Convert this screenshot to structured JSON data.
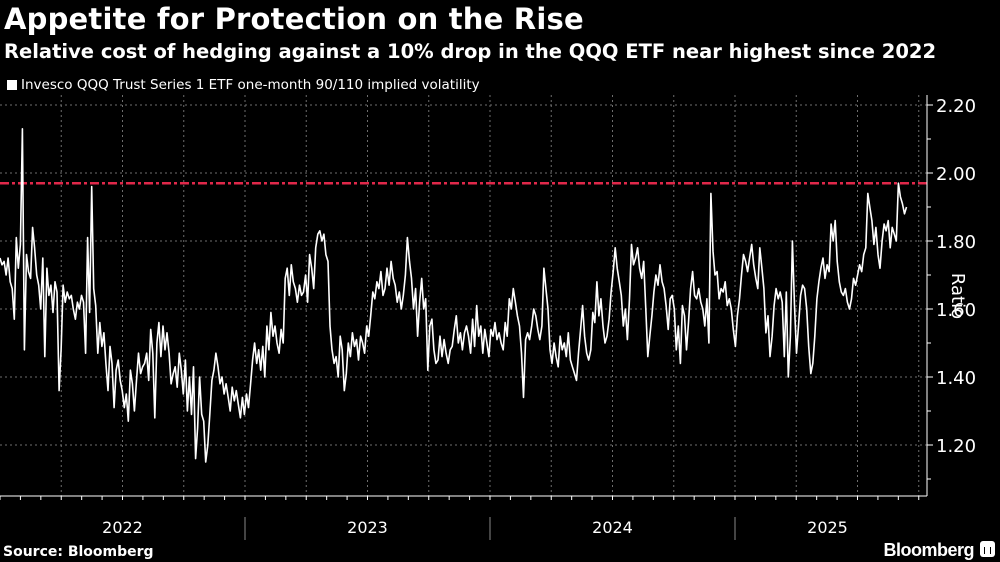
{
  "header": {
    "title": "Appetite for Protection on the Rise",
    "subtitle": "Relative cost of hedging against a 10% drop in the QQQ ETF near highest since 2022"
  },
  "legend": {
    "label": "Invesco QQQ Trust Series 1 ETF one-month 90/110 implied volatility"
  },
  "footer": {
    "source": "Source: Bloomberg",
    "brand": "Bloomberg"
  },
  "colors": {
    "background": "#000000",
    "line": "#ffffff",
    "reference_line": "#e0284a",
    "grid": "#6e6e6e"
  },
  "chart_data": {
    "type": "line",
    "title": "Appetite for Protection on the Rise",
    "subtitle": "Relative cost of hedging against a 10% drop in the QQQ ETF near highest since 2022",
    "xlabel": "",
    "ylabel": "Ratio",
    "ylim": [
      1.05,
      2.24
    ],
    "yticks": [
      1.2,
      1.4,
      1.6,
      1.8,
      2.0,
      2.2
    ],
    "ytick_labels": [
      "1.20",
      "1.40",
      "1.60",
      "1.80",
      "2.00",
      "2.20"
    ],
    "xlim": [
      2022.0,
      2025.75
    ],
    "xtick_labels": [
      "2022",
      "2023",
      "2024",
      "2025"
    ],
    "grid": true,
    "legend_position": "top-left",
    "reference_line": {
      "y": 1.97,
      "style": "dash-dot",
      "label": ""
    },
    "series": [
      {
        "name": "Invesco QQQ Trust Series 1 ETF one-month 90/110 implied volatility",
        "x_start": 2022.0,
        "x_step_years": 0.0192,
        "values": [
          1.75,
          1.73,
          1.74,
          1.7,
          1.75,
          1.68,
          1.66,
          1.57,
          1.81,
          1.72,
          1.79,
          2.13,
          1.48,
          1.76,
          1.71,
          1.69,
          1.84,
          1.78,
          1.7,
          1.67,
          1.6,
          1.75,
          1.46,
          1.72,
          1.64,
          1.67,
          1.59,
          1.68,
          1.65,
          1.36,
          1.48,
          1.67,
          1.62,
          1.65,
          1.63,
          1.64,
          1.6,
          1.57,
          1.62,
          1.6,
          1.64,
          1.62,
          1.47,
          1.81,
          1.59,
          1.96,
          1.66,
          1.61,
          1.47,
          1.56,
          1.49,
          1.53,
          1.44,
          1.36,
          1.49,
          1.44,
          1.31,
          1.42,
          1.45,
          1.39,
          1.36,
          1.31,
          1.35,
          1.27,
          1.42,
          1.38,
          1.3,
          1.39,
          1.47,
          1.41,
          1.43,
          1.44,
          1.47,
          1.39,
          1.54,
          1.47,
          1.28,
          1.5,
          1.56,
          1.46,
          1.55,
          1.48,
          1.53,
          1.47,
          1.38,
          1.41,
          1.43,
          1.37,
          1.47,
          1.42,
          1.35,
          1.45,
          1.3,
          1.4,
          1.29,
          1.43,
          1.16,
          1.25,
          1.4,
          1.29,
          1.27,
          1.15,
          1.2,
          1.29,
          1.39,
          1.42,
          1.47,
          1.43,
          1.38,
          1.4,
          1.35,
          1.38,
          1.34,
          1.3,
          1.37,
          1.33,
          1.36,
          1.32,
          1.28,
          1.34,
          1.29,
          1.35,
          1.31,
          1.38,
          1.45,
          1.5,
          1.44,
          1.48,
          1.42,
          1.49,
          1.4,
          1.55,
          1.48,
          1.59,
          1.52,
          1.55,
          1.5,
          1.47,
          1.54,
          1.5,
          1.69,
          1.72,
          1.64,
          1.73,
          1.68,
          1.66,
          1.62,
          1.67,
          1.64,
          1.65,
          1.7,
          1.62,
          1.76,
          1.72,
          1.66,
          1.78,
          1.82,
          1.83,
          1.8,
          1.82,
          1.76,
          1.74,
          1.55,
          1.48,
          1.44,
          1.46,
          1.4,
          1.52,
          1.48,
          1.36,
          1.41,
          1.5,
          1.46,
          1.53,
          1.49,
          1.51,
          1.45,
          1.52,
          1.5,
          1.47,
          1.55,
          1.52,
          1.58,
          1.65,
          1.63,
          1.68,
          1.66,
          1.71,
          1.64,
          1.66,
          1.72,
          1.67,
          1.74,
          1.69,
          1.67,
          1.62,
          1.65,
          1.6,
          1.64,
          1.7,
          1.81,
          1.74,
          1.69,
          1.6,
          1.66,
          1.52,
          1.62,
          1.69,
          1.6,
          1.63,
          1.42,
          1.55,
          1.57,
          1.48,
          1.44,
          1.45,
          1.52,
          1.46,
          1.51,
          1.47,
          1.44,
          1.48,
          1.49,
          1.54,
          1.58,
          1.5,
          1.53,
          1.48,
          1.53,
          1.55,
          1.52,
          1.47,
          1.57,
          1.49,
          1.61,
          1.52,
          1.55,
          1.47,
          1.54,
          1.5,
          1.46,
          1.54,
          1.52,
          1.56,
          1.51,
          1.53,
          1.5,
          1.48,
          1.56,
          1.52,
          1.63,
          1.6,
          1.66,
          1.62,
          1.58,
          1.55,
          1.47,
          1.34,
          1.51,
          1.53,
          1.51,
          1.55,
          1.6,
          1.58,
          1.54,
          1.51,
          1.55,
          1.72,
          1.66,
          1.6,
          1.48,
          1.44,
          1.5,
          1.46,
          1.43,
          1.52,
          1.48,
          1.5,
          1.46,
          1.53,
          1.45,
          1.43,
          1.41,
          1.39,
          1.47,
          1.54,
          1.61,
          1.52,
          1.47,
          1.45,
          1.48,
          1.59,
          1.56,
          1.68,
          1.58,
          1.63,
          1.55,
          1.5,
          1.52,
          1.57,
          1.65,
          1.71,
          1.78,
          1.72,
          1.68,
          1.64,
          1.55,
          1.6,
          1.51,
          1.63,
          1.79,
          1.73,
          1.75,
          1.78,
          1.72,
          1.69,
          1.74,
          1.6,
          1.46,
          1.52,
          1.58,
          1.65,
          1.7,
          1.67,
          1.73,
          1.68,
          1.66,
          1.61,
          1.54,
          1.63,
          1.64,
          1.6,
          1.48,
          1.55,
          1.44,
          1.61,
          1.58,
          1.48,
          1.56,
          1.66,
          1.71,
          1.64,
          1.63,
          1.66,
          1.62,
          1.6,
          1.55,
          1.63,
          1.5,
          1.94,
          1.77,
          1.7,
          1.71,
          1.63,
          1.66,
          1.65,
          1.68,
          1.61,
          1.63,
          1.6,
          1.54,
          1.49,
          1.58,
          1.63,
          1.7,
          1.76,
          1.74,
          1.71,
          1.75,
          1.79,
          1.73,
          1.69,
          1.66,
          1.78,
          1.72,
          1.66,
          1.53,
          1.58,
          1.46,
          1.52,
          1.61,
          1.66,
          1.63,
          1.65,
          1.62,
          1.46,
          1.65,
          1.4,
          1.52,
          1.8,
          1.61,
          1.47,
          1.55,
          1.64,
          1.67,
          1.66,
          1.6,
          1.49,
          1.41,
          1.44,
          1.52,
          1.63,
          1.68,
          1.72,
          1.75,
          1.69,
          1.73,
          1.71,
          1.85,
          1.8,
          1.86,
          1.74,
          1.68,
          1.65,
          1.64,
          1.66,
          1.62,
          1.6,
          1.63,
          1.69,
          1.67,
          1.7,
          1.73,
          1.71,
          1.76,
          1.78,
          1.94,
          1.9,
          1.86,
          1.79,
          1.84,
          1.76,
          1.72,
          1.8,
          1.85,
          1.83,
          1.86,
          1.78,
          1.84,
          1.82,
          1.8,
          1.97,
          1.93,
          1.91,
          1.88,
          1.9
        ]
      }
    ]
  }
}
